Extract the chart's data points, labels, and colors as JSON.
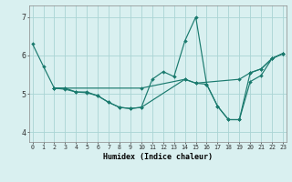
{
  "xlabel": "Humidex (Indice chaleur)",
  "bg_color": "#d9f0f0",
  "grid_color": "#aad4d4",
  "line_color": "#1a7a6e",
  "xlim": [
    -0.3,
    23.3
  ],
  "ylim": [
    3.75,
    7.3
  ],
  "xticks": [
    0,
    1,
    2,
    3,
    4,
    5,
    6,
    7,
    8,
    9,
    10,
    11,
    12,
    13,
    14,
    15,
    16,
    17,
    18,
    19,
    20,
    21,
    22,
    23
  ],
  "yticks": [
    4,
    5,
    6,
    7
  ],
  "lines": [
    {
      "x": [
        0,
        1,
        2,
        3,
        4,
        5,
        6,
        7,
        8,
        9,
        10,
        11,
        12,
        13,
        14,
        15,
        16,
        17,
        18,
        19,
        20,
        21,
        22,
        23
      ],
      "y": [
        6.3,
        5.72,
        5.15,
        5.15,
        5.05,
        5.05,
        4.95,
        4.78,
        4.65,
        4.62,
        4.65,
        5.38,
        5.58,
        5.45,
        6.38,
        7.0,
        5.25,
        4.68,
        4.33,
        4.33,
        5.32,
        5.48,
        5.92,
        6.05
      ]
    },
    {
      "x": [
        2,
        3,
        10,
        14,
        15,
        19,
        20,
        21,
        22,
        23
      ],
      "y": [
        5.15,
        5.15,
        5.15,
        5.38,
        5.28,
        5.38,
        5.55,
        5.65,
        5.92,
        6.05
      ]
    },
    {
      "x": [
        2,
        3,
        4,
        5,
        6,
        7,
        8,
        9,
        10,
        14,
        15,
        16,
        17,
        18,
        19,
        20,
        21,
        22,
        23
      ],
      "y": [
        5.15,
        5.12,
        5.05,
        5.03,
        4.95,
        4.78,
        4.65,
        4.62,
        4.65,
        5.38,
        5.28,
        5.25,
        4.68,
        4.33,
        4.33,
        5.55,
        5.65,
        5.92,
        6.05
      ]
    }
  ]
}
